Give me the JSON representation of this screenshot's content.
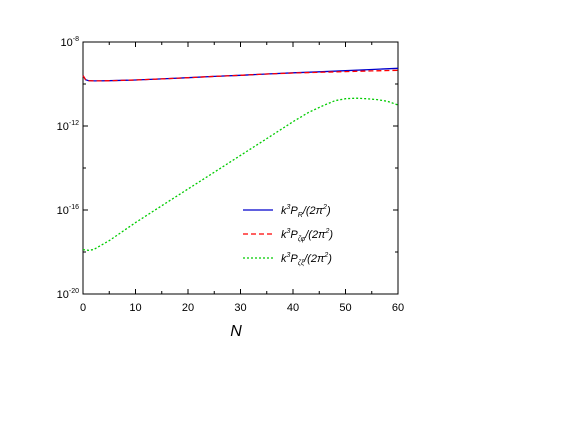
{
  "chart_data": {
    "type": "line",
    "title": "",
    "xlabel": "N",
    "ylabel": "",
    "xlim": [
      0,
      60
    ],
    "ylim_log10": [
      -20,
      -8
    ],
    "y_scale": "log",
    "grid": false,
    "legend_position": "lower-right",
    "x_ticks": [
      "0",
      "10",
      "20",
      "30",
      "40",
      "50",
      "60"
    ],
    "y_ticks": [
      {
        "base": "10",
        "exp": "-8",
        "value": 1e-08
      },
      {
        "base": "10",
        "exp": "-12",
        "value": 1e-12
      },
      {
        "base": "10",
        "exp": "-16",
        "value": 1e-16
      },
      {
        "base": "10",
        "exp": "-20",
        "value": 1e-20
      }
    ],
    "series": [
      {
        "legend": {
          "pre": "k",
          "sup": "3",
          "main": "P",
          "sub": "R",
          "post": "/(2π",
          "post_sup": "2",
          "close": ")"
        },
        "color": "#0000cc",
        "dash": "none",
        "x": [
          0,
          0.5,
          1,
          2,
          3,
          5,
          10,
          15,
          20,
          25,
          30,
          35,
          40,
          45,
          50,
          55,
          60
        ],
        "y": [
          2.5e-10,
          1.6e-10,
          1.45e-10,
          1.4e-10,
          1.4e-10,
          1.43e-10,
          1.55e-10,
          1.75e-10,
          2e-10,
          2.3e-10,
          2.6e-10,
          3e-10,
          3.4e-10,
          3.8e-10,
          4.3e-10,
          4.9e-10,
          5.6e-10
        ]
      },
      {
        "legend": {
          "pre": "k",
          "sup": "3",
          "main": "P",
          "sub": "ζφ",
          "post": "/(2π",
          "post_sup": "2",
          "close": ")"
        },
        "color": "#ff0000",
        "dash": "5,3",
        "x": [
          0,
          0.5,
          1,
          2,
          3,
          5,
          10,
          15,
          20,
          25,
          30,
          35,
          40,
          45,
          50,
          55,
          60
        ],
        "y": [
          2.5e-10,
          1.6e-10,
          1.45e-10,
          1.4e-10,
          1.4e-10,
          1.43e-10,
          1.55e-10,
          1.75e-10,
          2e-10,
          2.3e-10,
          2.6e-10,
          3e-10,
          3.35e-10,
          3.6e-10,
          3.9e-10,
          4.2e-10,
          4.5e-10
        ]
      },
      {
        "legend": {
          "pre": "k",
          "sup": "3",
          "main": "P",
          "sub": "ζξ",
          "post": "/(2π",
          "post_sup": "2",
          "close": ")"
        },
        "color": "#00cc00",
        "dash": "2,2",
        "x": [
          0,
          1,
          2,
          3,
          5,
          10,
          15,
          20,
          25,
          30,
          35,
          40,
          43,
          46,
          48,
          50,
          52,
          54,
          56,
          58,
          60
        ],
        "y": [
          1.3e-18,
          1.2e-18,
          1.3e-18,
          1.8e-18,
          3.5e-18,
          2.5e-17,
          1.6e-16,
          1e-15,
          6.3e-15,
          4e-14,
          2.5e-13,
          1.6e-12,
          4.5e-12,
          1e-11,
          1.6e-11,
          2e-11,
          2.1e-11,
          2e-11,
          1.8e-11,
          1.5e-11,
          1e-11
        ]
      }
    ]
  }
}
